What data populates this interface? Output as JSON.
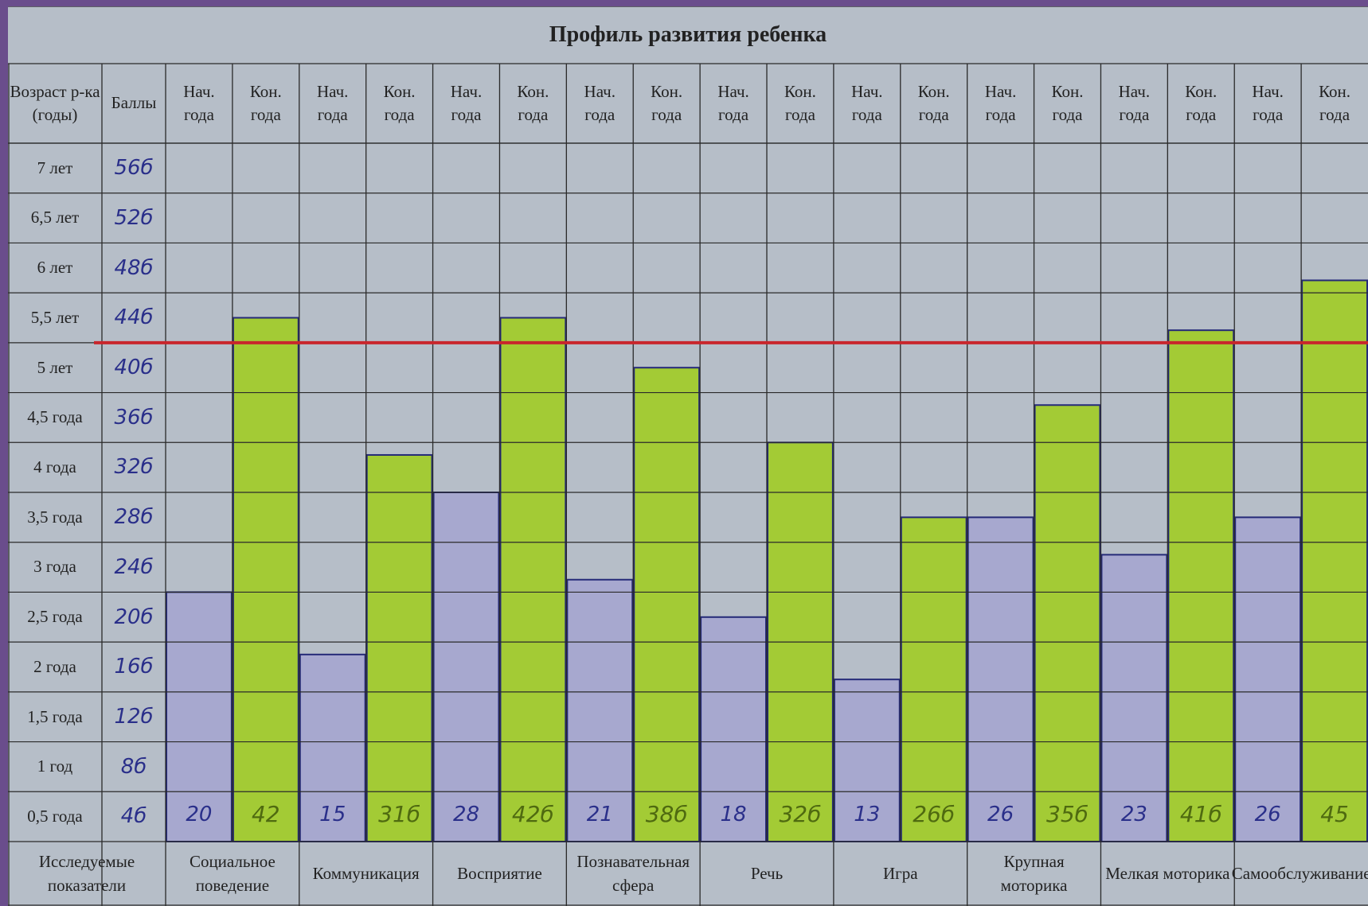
{
  "chart_data": {
    "type": "bar",
    "title": "Профиль развития ребенка",
    "age_header": "Возраст р-ка (годы)",
    "score_header": "Баллы",
    "category_header": "Исследуемые показатели",
    "categories": [
      "Социальное поведение",
      "Коммуникация",
      "Восприятие",
      "Познавательная сфера",
      "Речь",
      "Игра",
      "Крупная моторика",
      "Мелкая моторика",
      "Самообслуживание"
    ],
    "series": [
      {
        "name": "Нач. года",
        "color": "#a7a8cf",
        "values": [
          20,
          15,
          28,
          21,
          18,
          13,
          26,
          23,
          26
        ]
      },
      {
        "name": "Кон. года",
        "color": "#a3cb35",
        "values": [
          42,
          31,
          42,
          38,
          32,
          26,
          35,
          41,
          45
        ],
        "value_labels": [
          "42",
          "31б",
          "42б",
          "38б",
          "32б",
          "26б",
          "35б",
          "41б",
          "45"
        ]
      }
    ],
    "ylim": [
      0,
      56
    ],
    "yticks": [
      {
        "value": 4,
        "label": "4б"
      },
      {
        "value": 8,
        "label": "8б"
      },
      {
        "value": 12,
        "label": "12б"
      },
      {
        "value": 16,
        "label": "16б"
      },
      {
        "value": 20,
        "label": "20б"
      },
      {
        "value": 24,
        "label": "24б"
      },
      {
        "value": 28,
        "label": "28б"
      },
      {
        "value": 32,
        "label": "32б"
      },
      {
        "value": 36,
        "label": "36б"
      },
      {
        "value": 40,
        "label": "40б"
      },
      {
        "value": 44,
        "label": "44б"
      },
      {
        "value": 48,
        "label": "48б"
      },
      {
        "value": 52,
        "label": "52б"
      },
      {
        "value": 56,
        "label": "56б"
      }
    ],
    "age_labels": [
      "0,5 года",
      "1 год",
      "1,5 года",
      "2 года",
      "2,5 года",
      "3 года",
      "3,5 года",
      "4 года",
      "4,5 года",
      "5 лет",
      "5,5 лет",
      "6 лет",
      "6,5 лет",
      "7 лет"
    ],
    "reference_line": {
      "value": 40,
      "color": "#c8262c"
    },
    "grid": true
  }
}
